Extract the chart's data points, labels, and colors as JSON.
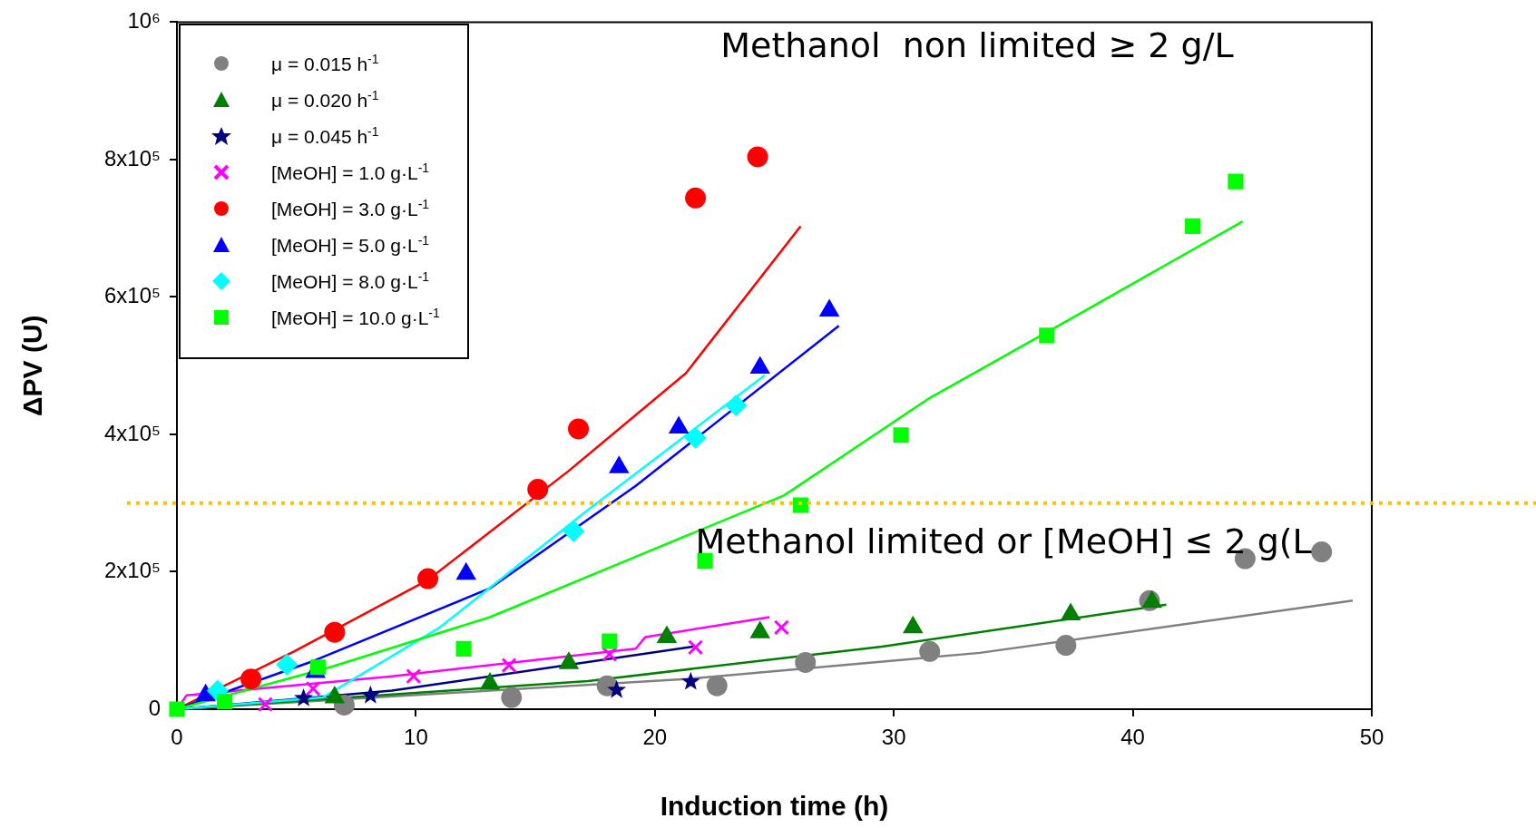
{
  "chart_data": {
    "type": "scatter",
    "xlabel": "Induction time (h)",
    "ylabel": "ΔPV (U)",
    "xlim": [
      0,
      50
    ],
    "xticks": [
      0,
      10,
      20,
      30,
      40,
      50
    ],
    "ylim": [
      0,
      1000000
    ],
    "yticks": [
      0,
      {
        "value": 200000,
        "label": "2x10⁵"
      },
      {
        "value": 400000,
        "label": "4x10⁵"
      },
      {
        "value": 600000,
        "label": "6x10⁵"
      },
      {
        "value": 800000,
        "label": "8x10⁵"
      },
      {
        "value": 1000000,
        "label": "10⁶"
      }
    ],
    "grid": false,
    "legend": "top left",
    "ref_lines": [
      {
        "axis": "y",
        "value": 300000,
        "color": "#ffc000",
        "line_style": "dotted"
      }
    ],
    "annotations": [
      "Methanol  non limited ≥ 2 g/L",
      "Methanol limited or [MeOH] ≤ 2 g(L"
    ],
    "series": [
      {
        "type": "line",
        "color": "#808080",
        "marker": "none",
        "x": [
          0,
          21.3,
          33.6,
          49.2
        ],
        "values": [
          0,
          44000,
          82000,
          158000
        ]
      },
      {
        "type": "line",
        "color": "#008000",
        "marker": "none",
        "x": [
          0,
          17.2,
          29.5,
          41.4
        ],
        "values": [
          0,
          41000,
          91000,
          152000
        ]
      },
      {
        "type": "line",
        "color": "#000080",
        "marker": "none",
        "x": [
          0,
          9.0,
          21.6
        ],
        "values": [
          0,
          27000,
          91000
        ]
      },
      {
        "type": "line",
        "color": "#ff00ff",
        "marker": "none",
        "x": [
          0,
          0.4,
          9.0,
          19.2,
          19.6,
          24.8
        ],
        "values": [
          0,
          20000,
          48000,
          88000,
          105000,
          134000
        ]
      },
      {
        "type": "line",
        "color": "#ff0000",
        "marker": "none",
        "x": [
          0,
          4.9,
          10.5,
          16.4,
          21.3,
          26.1
        ],
        "values": [
          0,
          84000,
          188000,
          347000,
          489000,
          703000
        ]
      },
      {
        "type": "line",
        "color": "#0000ff",
        "marker": "none",
        "x": [
          0,
          5.7,
          13.1,
          19.2,
          27.7
        ],
        "values": [
          0,
          70000,
          176000,
          325000,
          558000
        ]
      },
      {
        "type": "line",
        "color": "#00ffff",
        "marker": "none",
        "x": [
          0,
          6.1,
          11.0,
          17.2,
          24.6
        ],
        "values": [
          0,
          17000,
          119000,
          290000,
          486000
        ]
      },
      {
        "type": "line",
        "color": "#00ff00",
        "marker": "none",
        "x": [
          0,
          6.5,
          13.1,
          19.2,
          25.4,
          31.5,
          37.7,
          44.6
        ],
        "values": [
          0,
          62000,
          134000,
          222000,
          311000,
          453000,
          574000,
          710000
        ]
      },
      {
        "type": "scatter",
        "name": "μ = 0.015 h$^{-1}$",
        "color": "#808080",
        "marker": "circle",
        "x": [
          7.0,
          14.0,
          18.0,
          22.6,
          26.3,
          31.5,
          37.2,
          40.7,
          44.7,
          47.9
        ],
        "values": [
          6000,
          17000,
          34000,
          34000,
          68000,
          84000,
          93000,
          158000,
          219000,
          229000
        ]
      },
      {
        "type": "scatter",
        "name": "μ = 0.020 h$^{-1}$",
        "color": "#008000",
        "marker": "triangle",
        "x": [
          6.6,
          13.1,
          16.4,
          20.5,
          24.4,
          30.8,
          37.4,
          40.8
        ],
        "values": [
          17000,
          37000,
          67000,
          105000,
          112000,
          119000,
          138000,
          156000
        ]
      },
      {
        "type": "scatter",
        "name": "μ = 0.045 h$^{-1}$",
        "color": "#000080",
        "marker": "star",
        "x": [
          5.3,
          8.1,
          18.4,
          21.5
        ],
        "values": [
          16000,
          20000,
          28000,
          40000
        ]
      },
      {
        "type": "scatter",
        "name": "[MeOH] = 1.0 g·L$^{-1}$",
        "color": "#ff00ff",
        "marker": "cross",
        "x": [
          3.7,
          5.7,
          9.9,
          13.9,
          18.1,
          21.7,
          25.3
        ],
        "values": [
          7000,
          30000,
          48000,
          64000,
          80000,
          90000,
          119000
        ]
      },
      {
        "type": "scatter",
        "name": "[MeOH] = 3.0 g·L$^{-1}$",
        "color": "#ff0000",
        "marker": "circle",
        "x": [
          3.1,
          6.6,
          10.5,
          15.1,
          16.8,
          21.7,
          24.3
        ],
        "values": [
          44000,
          112000,
          190000,
          320000,
          408000,
          744000,
          804000
        ]
      },
      {
        "type": "scatter",
        "name": "[MeOH] = 5.0 g·L$^{-1}$",
        "color": "#0000ff",
        "marker": "triangle",
        "x": [
          1.2,
          5.8,
          12.1,
          18.5,
          21.0,
          24.4,
          27.3
        ],
        "values": [
          20000,
          54000,
          197000,
          352000,
          410000,
          497000,
          580000
        ]
      },
      {
        "type": "scatter",
        "name": "[MeOH] = 8.0 g·L$^{-1}$",
        "color": "#00ffff",
        "marker": "diamond",
        "x": [
          1.7,
          4.6,
          16.6,
          21.7,
          23.4
        ],
        "values": [
          27000,
          65000,
          259000,
          395000,
          442000
        ]
      },
      {
        "type": "scatter",
        "name": "[MeOH] = 10.0 g·L$^{-1}$",
        "color": "#00ff00",
        "marker": "square",
        "x": [
          0,
          2.0,
          5.9,
          12.0,
          18.1,
          22.1,
          26.1,
          30.3,
          36.4,
          42.5,
          44.3
        ],
        "values": [
          0,
          11000,
          61000,
          88000,
          99000,
          216000,
          297000,
          399000,
          544000,
          703000,
          768000
        ]
      }
    ]
  }
}
